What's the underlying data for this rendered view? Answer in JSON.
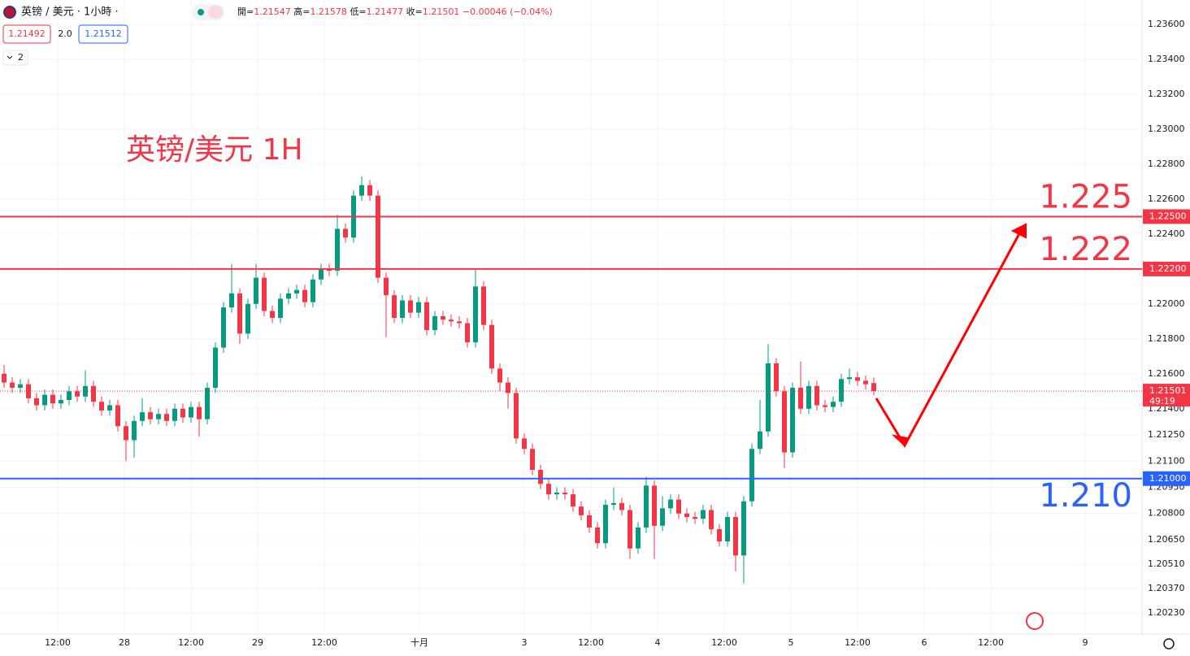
{
  "chart_data": {
    "type": "candlestick",
    "title": "英镑/美元 1H",
    "symbol": "英镑 / 美元 · 1小時 ·",
    "legend_labels": [
      "開=",
      "高=",
      "低=",
      "收="
    ],
    "change": "−0.00046",
    "change_pct": "(−0.04%)",
    "bid": "1.21492",
    "spread": "2.0",
    "ask": "1.21512",
    "indicators": "2",
    "countdown": "49:19",
    "up_color": "#089981",
    "down_color": "#f23645",
    "grid": true,
    "open": [
      1.216,
      1.2155,
      1.2152,
      1.2154,
      1.2146,
      1.2142,
      1.2148,
      1.2143,
      1.2145,
      1.215,
      1.2147,
      1.2153,
      1.2144,
      1.2139,
      1.2142,
      1.213,
      1.2122,
      1.2133,
      1.2138,
      1.2134,
      1.2137,
      1.2133,
      1.214,
      1.2135,
      1.2141,
      1.2134,
      1.2152,
      1.2175,
      1.2198,
      1.2206,
      1.2183,
      1.22,
      1.2215,
      1.2196,
      1.2192,
      1.2203,
      1.2206,
      1.2208,
      1.2201,
      1.2214,
      1.222,
      1.2219,
      1.2243,
      1.2238,
      1.2262,
      1.2268,
      1.2262,
      1.2215,
      1.2205,
      1.2192,
      1.2202,
      1.2195,
      1.2201,
      1.2185,
      1.2193,
      1.2191,
      1.219,
      1.2189,
      1.2178,
      1.221,
      1.2188,
      1.2163,
      1.2155,
      1.2149,
      1.2123,
      1.2117,
      1.2105,
      1.2097,
      1.2091,
      1.2092,
      1.2091,
      1.2084,
      1.2079,
      1.2072,
      1.2063,
      1.2085,
      1.2086,
      1.2082,
      1.206,
      1.2072,
      1.2096,
      1.2073,
      1.2083,
      1.2088,
      1.208,
      1.2078,
      1.2077,
      1.2082,
      1.2071,
      1.2064,
      1.2078,
      1.2056,
      1.2087,
      1.2117,
      1.2127,
      1.2166,
      1.215,
      1.2115,
      1.2152,
      1.214,
      1.2153,
      1.2142,
      1.2141,
      1.2144,
      1.2157,
      1.2158,
      1.2156,
      1.21547
    ],
    "high": [
      1.2165,
      1.2158,
      1.2157,
      1.2157,
      1.2149,
      1.2151,
      1.2151,
      1.2148,
      1.2153,
      1.2153,
      1.2162,
      1.2156,
      1.2147,
      1.2145,
      1.2145,
      1.2133,
      1.2136,
      1.2146,
      1.2141,
      1.214,
      1.214,
      1.2143,
      1.2143,
      1.2144,
      1.2144,
      1.2155,
      1.2178,
      1.2201,
      1.2223,
      1.2209,
      1.2203,
      1.2223,
      1.2218,
      1.2199,
      1.2206,
      1.2209,
      1.2211,
      1.2211,
      1.2217,
      1.2223,
      1.2223,
      1.2251,
      1.2246,
      1.2265,
      1.2273,
      1.2271,
      1.2265,
      1.2218,
      1.2208,
      1.2205,
      1.2205,
      1.2204,
      1.2204,
      1.2196,
      1.2196,
      1.2194,
      1.2193,
      1.2192,
      1.222,
      1.2213,
      1.2191,
      1.2166,
      1.2158,
      1.2152,
      1.2126,
      1.212,
      1.2108,
      1.21,
      1.2095,
      1.2095,
      1.2094,
      1.2087,
      1.2082,
      1.2075,
      1.2088,
      1.2095,
      1.2089,
      1.2085,
      1.2075,
      1.2101,
      1.2099,
      1.209,
      1.2091,
      1.2091,
      1.2083,
      1.2081,
      1.2085,
      1.2085,
      1.2074,
      1.2081,
      1.2081,
      1.209,
      1.212,
      1.2145,
      1.2177,
      1.2169,
      1.2153,
      1.2155,
      1.2167,
      1.2156,
      1.2156,
      1.2145,
      1.2147,
      1.216,
      1.2163,
      1.2161,
      1.2159,
      1.21578
    ],
    "low": [
      1.2152,
      1.2149,
      1.2149,
      1.2143,
      1.2139,
      1.2139,
      1.214,
      1.214,
      1.2142,
      1.2144,
      1.2144,
      1.2141,
      1.2136,
      1.2136,
      1.2127,
      1.211,
      1.2112,
      1.213,
      1.2131,
      1.2131,
      1.213,
      1.213,
      1.2132,
      1.2132,
      1.2124,
      1.2131,
      1.2149,
      1.2172,
      1.2195,
      1.2177,
      1.218,
      1.2197,
      1.2193,
      1.2189,
      1.2189,
      1.22,
      1.2203,
      1.2198,
      1.2198,
      1.2211,
      1.2216,
      1.2216,
      1.2235,
      1.2235,
      1.2259,
      1.2259,
      1.2212,
      1.2181,
      1.2189,
      1.2189,
      1.2192,
      1.2192,
      1.2182,
      1.2182,
      1.2188,
      1.2187,
      1.2186,
      1.2175,
      1.2175,
      1.2185,
      1.216,
      1.215,
      1.214,
      1.212,
      1.2114,
      1.2102,
      1.2094,
      1.2088,
      1.2088,
      1.2088,
      1.2081,
      1.2076,
      1.2069,
      1.206,
      1.206,
      1.2082,
      1.2079,
      1.2054,
      1.2057,
      1.2069,
      1.2054,
      1.207,
      1.208,
      1.2077,
      1.2075,
      1.2074,
      1.2074,
      1.2068,
      1.2061,
      1.2061,
      1.2047,
      1.204,
      1.2084,
      1.2114,
      1.2124,
      1.2147,
      1.2106,
      1.2112,
      1.2137,
      1.2137,
      1.2139,
      1.2138,
      1.2138,
      1.2141,
      1.2154,
      1.2153,
      1.2151,
      1.21477
    ],
    "close": [
      1.2155,
      1.2152,
      1.2154,
      1.2146,
      1.2142,
      1.2148,
      1.2143,
      1.2145,
      1.215,
      1.2147,
      1.2153,
      1.2144,
      1.2139,
      1.2142,
      1.213,
      1.2122,
      1.2133,
      1.2138,
      1.2134,
      1.2137,
      1.2133,
      1.214,
      1.2135,
      1.2141,
      1.2134,
      1.2152,
      1.2175,
      1.2198,
      1.2206,
      1.2183,
      1.22,
      1.2215,
      1.2196,
      1.2192,
      1.2203,
      1.2206,
      1.2208,
      1.2201,
      1.2214,
      1.222,
      1.2219,
      1.2243,
      1.2238,
      1.2262,
      1.2268,
      1.2262,
      1.2215,
      1.2205,
      1.2192,
      1.2202,
      1.2195,
      1.2201,
      1.2185,
      1.2193,
      1.2191,
      1.219,
      1.2189,
      1.2178,
      1.221,
      1.2188,
      1.2163,
      1.2155,
      1.2149,
      1.2123,
      1.2117,
      1.2105,
      1.2097,
      1.2091,
      1.2092,
      1.2091,
      1.2084,
      1.2079,
      1.2072,
      1.2063,
      1.2085,
      1.2086,
      1.2082,
      1.206,
      1.2072,
      1.2096,
      1.2073,
      1.2083,
      1.2088,
      1.208,
      1.2078,
      1.2077,
      1.2082,
      1.2071,
      1.2064,
      1.2078,
      1.2056,
      1.2087,
      1.2117,
      1.2127,
      1.2166,
      1.215,
      1.2115,
      1.2152,
      1.214,
      1.2153,
      1.2142,
      1.2141,
      1.2144,
      1.2157,
      1.2158,
      1.2156,
      1.2154,
      1.21501
    ],
    "xlim": [
      -0.5,
      140
    ],
    "xticks": [
      {
        "value": 6.6,
        "label": "12:00"
      },
      {
        "value": 14.8,
        "label": "28"
      },
      {
        "value": 23,
        "label": "12:00"
      },
      {
        "value": 31.2,
        "label": "29"
      },
      {
        "value": 39.4,
        "label": "12:00"
      },
      {
        "value": 51.1,
        "label": "十月"
      },
      {
        "value": 64,
        "label": "3"
      },
      {
        "value": 72.2,
        "label": "12:00"
      },
      {
        "value": 80.4,
        "label": "4"
      },
      {
        "value": 88.6,
        "label": "12:00"
      },
      {
        "value": 96.8,
        "label": "5"
      },
      {
        "value": 105,
        "label": "12:00"
      },
      {
        "value": 113.2,
        "label": "6"
      },
      {
        "value": 121.4,
        "label": "12:00"
      },
      {
        "value": 133,
        "label": "9"
      }
    ],
    "ylim": [
      1.2011,
      1.2374
    ],
    "yticks": [
      {
        "value": 1.236,
        "label": "1.23600"
      },
      {
        "value": 1.234,
        "label": "1.23400"
      },
      {
        "value": 1.232,
        "label": "1.23200"
      },
      {
        "value": 1.23,
        "label": "1.23000"
      },
      {
        "value": 1.228,
        "label": "1.22800"
      },
      {
        "value": 1.226,
        "label": "1.22600"
      },
      {
        "value": 1.224,
        "label": "1.22400"
      },
      {
        "value": 1.222,
        "label": "1.22200"
      },
      {
        "value": 1.22,
        "label": "1.22000"
      },
      {
        "value": 1.218,
        "label": "1.21800"
      },
      {
        "value": 1.216,
        "label": "1.21600"
      },
      {
        "value": 1.214,
        "label": "1.21400"
      },
      {
        "value": 1.2125,
        "label": "1.21250"
      },
      {
        "value": 1.211,
        "label": "1.21100"
      },
      {
        "value": 1.2095,
        "label": "1.20950"
      },
      {
        "value": 1.208,
        "label": "1.20800"
      },
      {
        "value": 1.2065,
        "label": "1.20650"
      },
      {
        "value": 1.2051,
        "label": "1.20510"
      },
      {
        "value": 1.2037,
        "label": "1.20370"
      },
      {
        "value": 1.2023,
        "label": "1.20230"
      }
    ],
    "levels": [
      {
        "value": 1.225,
        "label": "1.225",
        "axis_label": "1.22500",
        "color": "#f23645"
      },
      {
        "value": 1.222,
        "label": "1.222",
        "axis_label": "1.22200",
        "color": "#f23645"
      },
      {
        "value": 1.21,
        "label": "1.210",
        "axis_label": "1.21000",
        "color": "#2962ff"
      }
    ]
  }
}
